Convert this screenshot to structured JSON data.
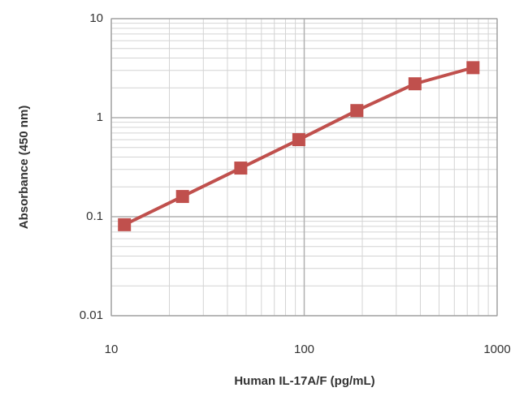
{
  "chart_data": {
    "type": "line",
    "x_label": "Human IL-17A/F (pg/mL)",
    "y_label": "Absorbance (450 nm)",
    "x": [
      11.7,
      23.4,
      46.9,
      93.8,
      187.5,
      375,
      750
    ],
    "series": [
      {
        "color": "#c0504d",
        "values": [
          0.083,
          0.16,
          0.31,
          0.6,
          1.18,
          2.2,
          3.2
        ]
      }
    ],
    "x_log": true,
    "y_log": true,
    "xlim": [
      10,
      1000
    ],
    "xticks": [
      10,
      100,
      1000
    ],
    "ylim": [
      0.01,
      10
    ],
    "yticks": [
      0.01,
      0.1,
      1,
      10
    ],
    "grid": true,
    "minor_grid": true
  }
}
